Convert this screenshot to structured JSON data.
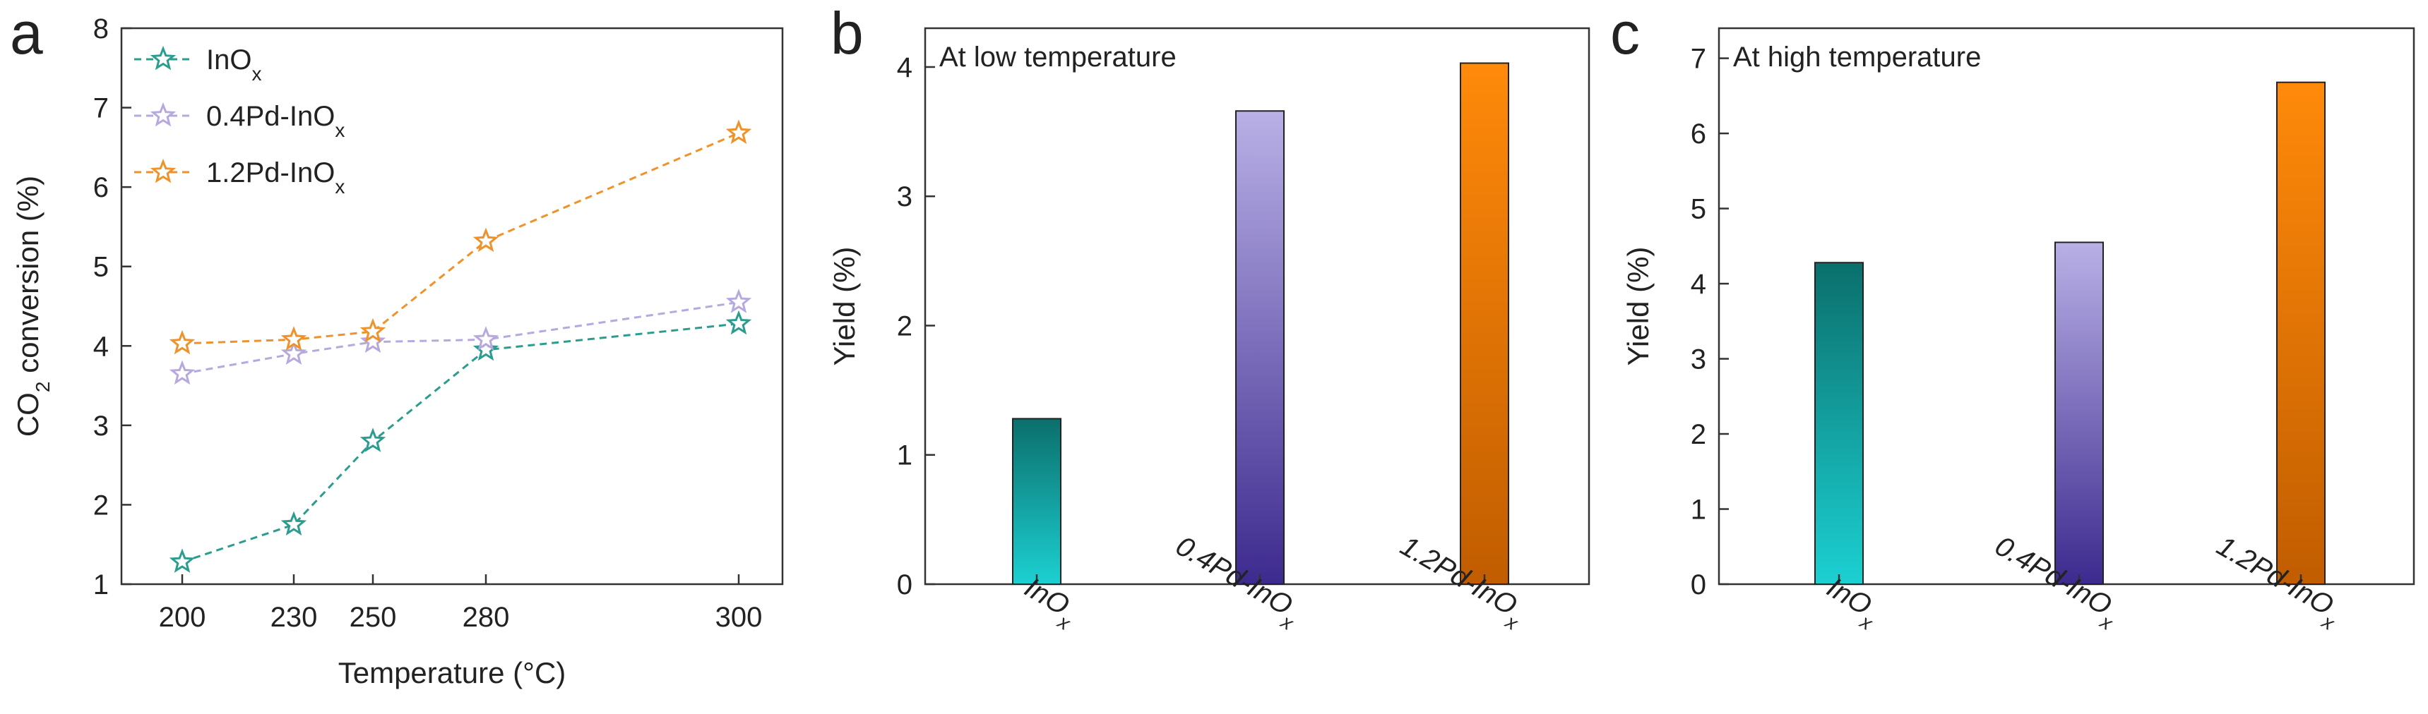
{
  "chart_data": [
    {
      "panel": "a",
      "type": "line",
      "x": [
        200,
        230,
        250,
        280,
        300
      ],
      "x_tick_labels": [
        "200",
        "230",
        "250",
        "280",
        "300"
      ],
      "series": [
        {
          "name": "InOx",
          "label_main": "InO",
          "label_sub": "x",
          "color": "#2a9d8f",
          "values": [
            1.28,
            1.75,
            2.8,
            3.95,
            4.28
          ]
        },
        {
          "name": "0.4Pd-InOx",
          "label_main": "0.4Pd-InO",
          "label_sub": "x",
          "color": "#b7a8e0",
          "values": [
            3.65,
            3.9,
            4.05,
            4.08,
            4.55
          ]
        },
        {
          "name": "1.2Pd-InOx",
          "label_main": "1.2Pd-InO",
          "label_sub": "x",
          "color": "#f0922a",
          "values": [
            4.03,
            4.08,
            4.18,
            5.32,
            6.68
          ]
        }
      ],
      "xlabel": "Temperature (°C)",
      "ylabel_main": "CO",
      "ylabel_sub": "2",
      "ylabel_rest": " conversion (%)",
      "ylim": [
        1,
        8
      ],
      "y_ticks": [
        "1",
        "2",
        "3",
        "4",
        "5",
        "6",
        "7",
        "8"
      ],
      "legend": "top-left",
      "grid": false
    },
    {
      "panel": "b",
      "type": "bar",
      "title": "At low temperature",
      "categories": [
        {
          "name": "InOx",
          "main": "InO",
          "sub": "x"
        },
        {
          "name": "0.4Pd-InOx",
          "main": "0.4Pd-InO",
          "sub": "x"
        },
        {
          "name": "1.2Pd-InOx",
          "main": "1.2Pd-InO",
          "sub": "x"
        }
      ],
      "values": [
        1.28,
        3.66,
        4.03
      ],
      "bar_colors": [
        {
          "top": "#0b6f6c",
          "bottom": "#1cd0d2"
        },
        {
          "top": "#b9b0e6",
          "bottom": "#3d2a8e"
        },
        {
          "top": "#ff8a0a",
          "bottom": "#c15d00"
        }
      ],
      "ylabel": "Yield (%)",
      "ylim": [
        0,
        4.3
      ],
      "y_ticks": [
        "0",
        "1",
        "2",
        "3",
        "4"
      ]
    },
    {
      "panel": "c",
      "type": "bar",
      "title": "At high temperature",
      "categories": [
        {
          "name": "InOx",
          "main": "InO",
          "sub": "x"
        },
        {
          "name": "0.4Pd-InOx",
          "main": "0.4Pd-InO",
          "sub": "x"
        },
        {
          "name": "1.2Pd-InOx",
          "main": "1.2Pd-InO",
          "sub": "x"
        }
      ],
      "values": [
        4.28,
        4.55,
        6.68
      ],
      "bar_colors": [
        {
          "top": "#0b6f6c",
          "bottom": "#1cd0d2"
        },
        {
          "top": "#b9b0e6",
          "bottom": "#3d2a8e"
        },
        {
          "top": "#ff8a0a",
          "bottom": "#c15d00"
        }
      ],
      "ylabel": "Yield (%)",
      "ylim": [
        0,
        7.4
      ],
      "y_ticks": [
        "0",
        "1",
        "2",
        "3",
        "4",
        "5",
        "6",
        "7"
      ]
    }
  ]
}
